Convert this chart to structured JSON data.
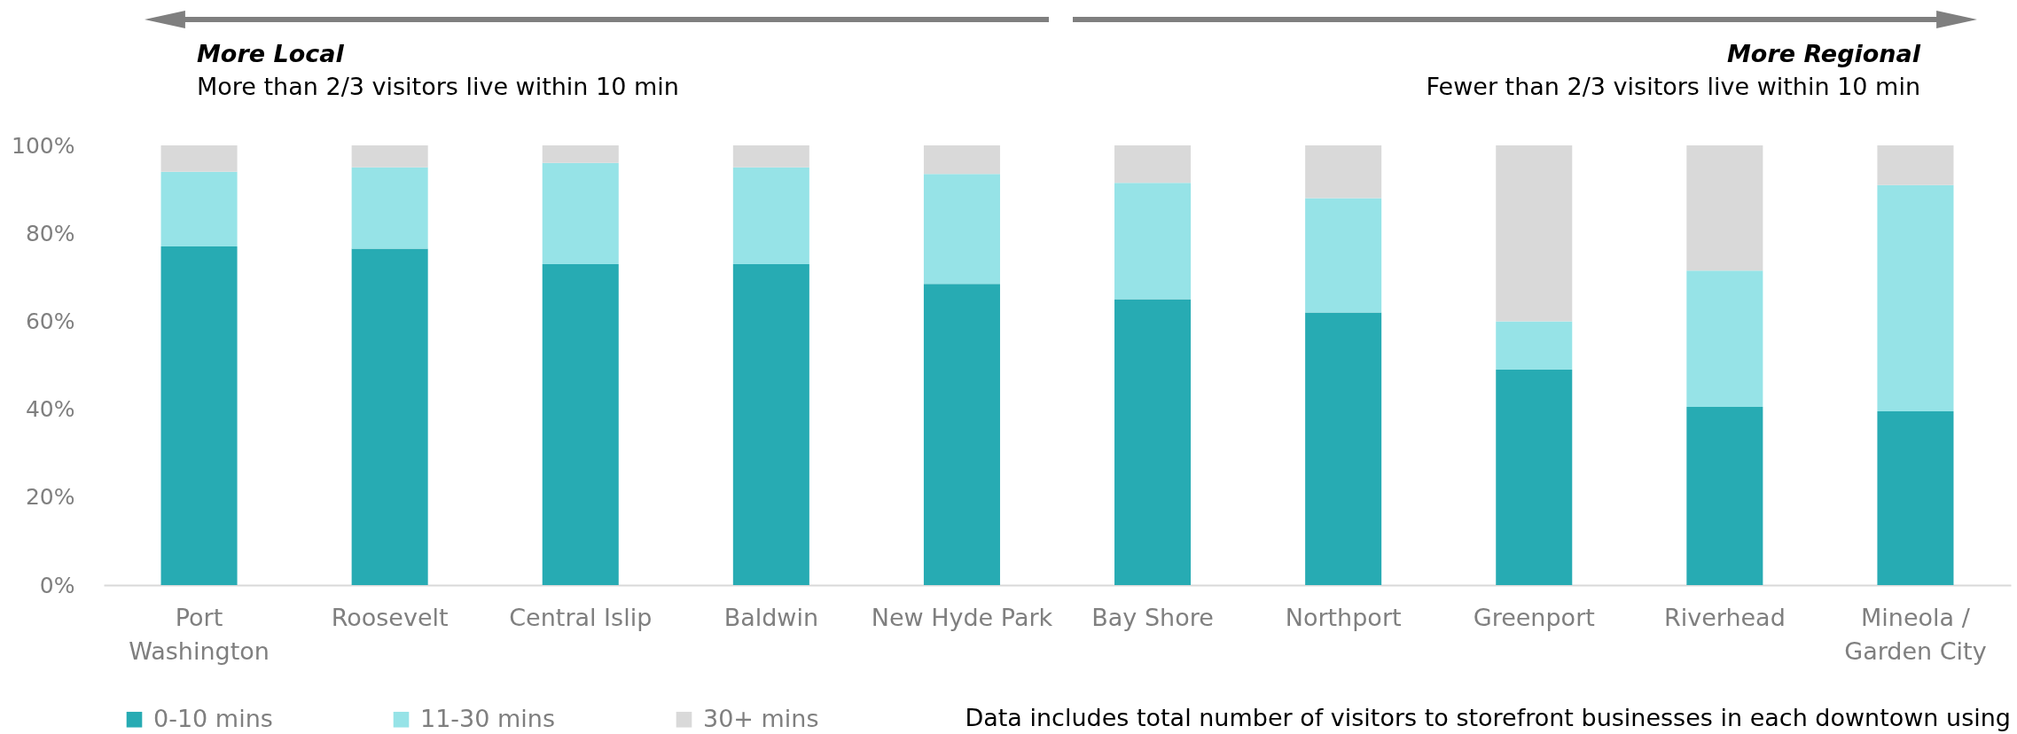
{
  "chart_data": {
    "type": "bar",
    "stacked": true,
    "categories": [
      "Port Washington",
      "Roosevelt",
      "Central Islip",
      "Baldwin",
      "New Hyde Park",
      "Bay Shore",
      "Northport",
      "Greenport",
      "Riverhead",
      "Mineola / Garden City"
    ],
    "series": [
      {
        "name": "0-10 mins",
        "color": "#27abb3",
        "values": [
          77,
          76.5,
          73,
          73,
          68.5,
          65,
          62,
          49,
          40.5,
          39.5
        ]
      },
      {
        "name": "11-30 mins",
        "color": "#96e3e7",
        "values": [
          17,
          18.5,
          23,
          22,
          25,
          26.5,
          26,
          11,
          31,
          51.5
        ]
      },
      {
        "name": "30+ mins",
        "color": "#d9d9d9",
        "values": [
          6,
          5,
          4,
          5,
          6.5,
          8.5,
          12,
          40,
          28.5,
          9
        ]
      }
    ],
    "ylim": [
      0,
      100
    ],
    "yticks": [
      {
        "value": 0,
        "label": "0%"
      },
      {
        "value": 20,
        "label": "20%"
      },
      {
        "value": 40,
        "label": "40%"
      },
      {
        "value": 60,
        "label": "60%"
      },
      {
        "value": 80,
        "label": "80%"
      },
      {
        "value": 100,
        "label": "100%"
      }
    ],
    "legend": "bottom left",
    "annotations": [
      "More Local",
      "More than 2/3 visitors live within 10 min",
      "More Regional",
      "Fewer than 2/3 visitors live within 10 min",
      "Data includes total number of visitors to storefront businesses in each downtown using"
    ]
  }
}
